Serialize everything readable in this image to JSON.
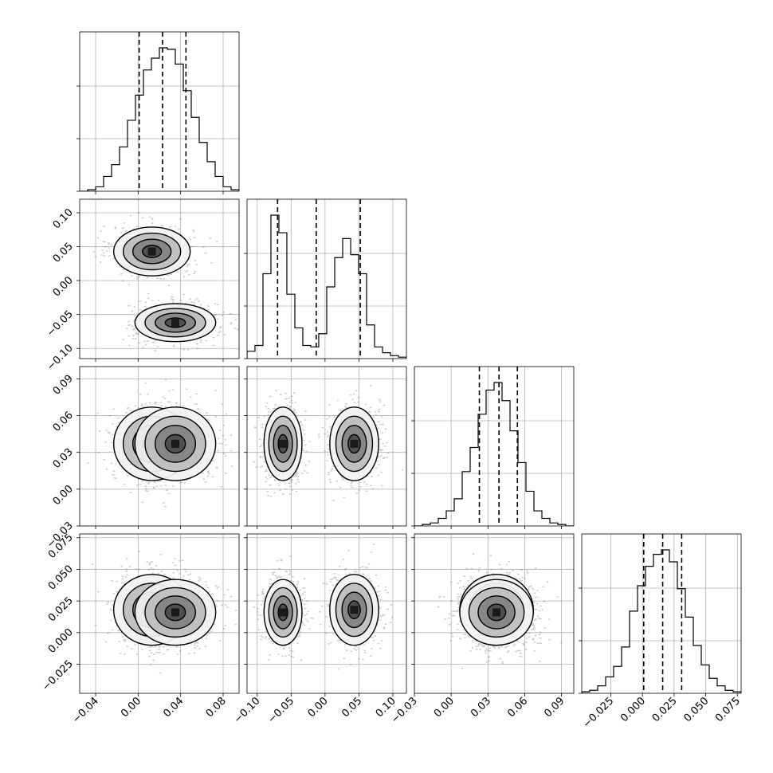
{
  "chart_data": {
    "type": "corner",
    "parameters": [
      {
        "range": [
          -0.055,
          0.095
        ],
        "ticks": [
          -0.04,
          0.0,
          0.04,
          0.08
        ],
        "tick_labels": [
          "−0.04",
          "0.00",
          "0.04",
          "0.08"
        ],
        "quantiles": [
          0.001,
          0.023,
          0.045
        ],
        "histogram": {
          "bin_edges": [
            -0.055,
            -0.0475,
            -0.04,
            -0.0325,
            -0.025,
            -0.0175,
            -0.01,
            -0.0025,
            0.005,
            0.0125,
            0.02,
            0.0275,
            0.035,
            0.0425,
            0.05,
            0.0575,
            0.065,
            0.0725,
            0.08,
            0.0875,
            0.095
          ],
          "counts": [
            0,
            0.01,
            0.03,
            0.1,
            0.18,
            0.3,
            0.48,
            0.65,
            0.82,
            0.9,
            0.97,
            0.96,
            0.86,
            0.68,
            0.5,
            0.33,
            0.2,
            0.1,
            0.03,
            0.01
          ]
        }
      },
      {
        "range": [
          -0.115,
          0.12
        ],
        "ticks": [
          -0.1,
          -0.05,
          0.0,
          0.05,
          0.1
        ],
        "tick_labels": [
          "−0.10",
          "−0.05",
          "0.00",
          "0.05",
          "0.10"
        ],
        "quantiles": [
          -0.07,
          -0.013,
          0.052
        ],
        "histogram": {
          "bin_edges": [
            -0.115,
            -0.1033,
            -0.0915,
            -0.0798,
            -0.068,
            -0.0563,
            -0.0445,
            -0.0328,
            -0.021,
            -0.0093,
            0.0025,
            0.0143,
            0.026,
            0.0378,
            0.0495,
            0.0613,
            0.073,
            0.0848,
            0.0965,
            0.1083,
            0.12
          ],
          "counts": [
            0.05,
            0.09,
            0.58,
            0.98,
            0.86,
            0.44,
            0.21,
            0.09,
            0.08,
            0.17,
            0.49,
            0.69,
            0.82,
            0.71,
            0.58,
            0.23,
            0.08,
            0.04,
            0.02,
            0.01
          ]
        }
      },
      {
        "range": [
          -0.03,
          0.1
        ],
        "ticks": [
          -0.03,
          0.0,
          0.03,
          0.06,
          0.09
        ],
        "tick_labels": [
          "−0.03",
          "0.00",
          "0.03",
          "0.06",
          "0.09"
        ],
        "quantiles": [
          0.023,
          0.039,
          0.054
        ],
        "histogram": {
          "bin_edges": [
            -0.03,
            -0.0235,
            -0.017,
            -0.0105,
            -0.004,
            0.0025,
            0.009,
            0.0155,
            0.022,
            0.0285,
            0.035,
            0.0415,
            0.048,
            0.0545,
            0.061,
            0.0675,
            0.074,
            0.0805,
            0.087,
            0.0935,
            0.1
          ],
          "counts": [
            0,
            0.01,
            0.02,
            0.05,
            0.1,
            0.18,
            0.36,
            0.52,
            0.74,
            0.9,
            0.95,
            0.83,
            0.63,
            0.42,
            0.23,
            0.1,
            0.05,
            0.02,
            0.01,
            0
          ]
        }
      },
      {
        "range": [
          -0.048,
          0.078
        ],
        "ticks": [
          -0.025,
          0.0,
          0.025,
          0.05,
          0.075
        ],
        "tick_labels": [
          "−0.025",
          "0.000",
          "0.025",
          "0.050",
          "0.075"
        ],
        "quantiles": [
          0.001,
          0.016,
          0.031
        ],
        "histogram": {
          "bin_edges": [
            -0.048,
            -0.0417,
            -0.0354,
            -0.0291,
            -0.0228,
            -0.0165,
            -0.0102,
            -0.0039,
            0.0024,
            0.0087,
            0.015,
            0.0213,
            0.0276,
            0.0339,
            0.0402,
            0.0465,
            0.0528,
            0.0591,
            0.0654,
            0.0717,
            0.078
          ],
          "counts": [
            0.01,
            0.02,
            0.05,
            0.11,
            0.18,
            0.31,
            0.55,
            0.72,
            0.85,
            0.93,
            0.96,
            0.88,
            0.7,
            0.51,
            0.32,
            0.19,
            0.1,
            0.05,
            0.02,
            0.01
          ]
        }
      }
    ],
    "modes": [
      {
        "mean": [
          0.013,
          0.043,
          0.037,
          0.018
        ],
        "sd": [
          0.018,
          0.018,
          0.015,
          0.014
        ]
      },
      {
        "mean": [
          0.035,
          -0.062,
          0.037,
          0.016
        ],
        "sd": [
          0.019,
          0.014,
          0.015,
          0.013
        ]
      }
    ],
    "contour_levels_sigma": [
      0.5,
      1.0,
      1.5,
      2.0
    ],
    "grid": true,
    "hist_type": "step",
    "quantile_line_style": "dashed"
  }
}
